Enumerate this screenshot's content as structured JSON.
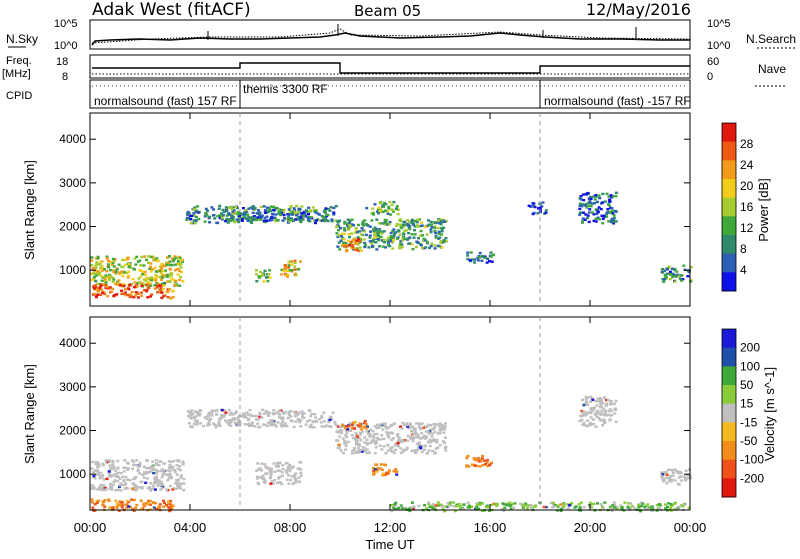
{
  "header": {
    "station": "Adak West (fitACF)",
    "beam": "Beam 05",
    "date": "12/May/2016"
  },
  "noise_panel": {
    "left_label": "N.Sky",
    "right_label": "N.Search",
    "left_ticks": [
      "10^5",
      "10^0"
    ],
    "right_ticks": [
      "10^5",
      "10^0"
    ]
  },
  "freq_panel": {
    "left_label": "Freq.",
    "left_unit": "[MHz]",
    "right_label": "Nave",
    "left_ticks": [
      "18",
      "8"
    ],
    "right_ticks": [
      "60",
      "0"
    ]
  },
  "cpid_panel": {
    "label": "CPID",
    "segments": [
      {
        "start_h": 0,
        "end_h": 6,
        "text": "normalsound (fast) 157 RF"
      },
      {
        "start_h": 6,
        "end_h": 18,
        "text": "themis 3300 RF"
      },
      {
        "start_h": 18,
        "end_h": 24,
        "text": "normalsound (fast) -157 RF"
      }
    ]
  },
  "x_axis": {
    "label": "Time UT",
    "ticks": [
      "00:00",
      "04:00",
      "08:00",
      "12:00",
      "16:00",
      "20:00",
      "00:00"
    ]
  },
  "colors": {
    "power": [
      "#1010e8",
      "#2e5fb8",
      "#2f8a6b",
      "#3fa83a",
      "#a6cc30",
      "#f3cd1c",
      "#f39a1a",
      "#ee5a14",
      "#e01810"
    ],
    "velocity_neg": [
      "#e01810",
      "#f0501a",
      "#f28c1a",
      "#f4b820"
    ],
    "velocity_ground": "#bfbfbf",
    "velocity_pos": [
      "#8acb3c",
      "#3fa83a",
      "#2f8a6b",
      "#1f4fa8",
      "#1a1ad8"
    ]
  },
  "chart_data": [
    {
      "type": "heatmap",
      "name": "power",
      "ylabel": "Slant Range [km]",
      "xlim": [
        0,
        24
      ],
      "ylim": [
        180,
        4600
      ],
      "yticks": [
        "1000",
        "2000",
        "3000",
        "4000"
      ],
      "colorbar": {
        "label": "Power [dB]",
        "range": [
          0,
          32
        ],
        "ticks": [
          "4",
          "8",
          "12",
          "16",
          "20",
          "24",
          "28"
        ]
      },
      "regions": [
        {
          "t0": 0.0,
          "t1": 3.7,
          "r0": 650,
          "r1": 1350,
          "level": 0.55
        },
        {
          "t0": 0.0,
          "t1": 2.8,
          "r0": 400,
          "r1": 700,
          "level": 0.9
        },
        {
          "t0": 2.6,
          "t1": 3.3,
          "r0": 380,
          "r1": 600,
          "level": 0.82
        },
        {
          "t0": 3.8,
          "t1": 9.8,
          "r0": 2100,
          "r1": 2500,
          "level": 0.3
        },
        {
          "t0": 5.5,
          "t1": 9.5,
          "r0": 2150,
          "r1": 2350,
          "level": 0.22
        },
        {
          "t0": 6.6,
          "t1": 7.2,
          "r0": 750,
          "r1": 1050,
          "level": 0.45
        },
        {
          "t0": 7.6,
          "t1": 8.4,
          "r0": 850,
          "r1": 1250,
          "level": 0.62
        },
        {
          "t0": 9.8,
          "t1": 14.2,
          "r0": 1500,
          "r1": 2200,
          "level": 0.35
        },
        {
          "t0": 10.0,
          "t1": 10.8,
          "r0": 1450,
          "r1": 1750,
          "level": 0.75
        },
        {
          "t0": 11.0,
          "t1": 12.3,
          "r0": 2300,
          "r1": 2600,
          "level": 0.35
        },
        {
          "t0": 15.0,
          "t1": 16.1,
          "r0": 1200,
          "r1": 1450,
          "level": 0.2
        },
        {
          "t0": 17.5,
          "t1": 18.2,
          "r0": 2300,
          "r1": 2600,
          "level": 0.12
        },
        {
          "t0": 19.5,
          "t1": 21.0,
          "r0": 2100,
          "r1": 2800,
          "level": 0.22
        },
        {
          "t0": 22.8,
          "t1": 24.0,
          "r0": 750,
          "r1": 1150,
          "level": 0.3
        }
      ]
    },
    {
      "type": "heatmap",
      "name": "velocity",
      "ylabel": "Slant Range [km]",
      "xlim": [
        0,
        24
      ],
      "ylim": [
        180,
        4600
      ],
      "yticks": [
        "1000",
        "2000",
        "3000",
        "4000"
      ],
      "colorbar": {
        "label": "Velocity [m s^-1]",
        "ticks": [
          "200",
          "100",
          "50",
          "15",
          "-15",
          "-50",
          "-100",
          "-200"
        ]
      },
      "regions": [
        {
          "t0": 0.0,
          "t1": 3.7,
          "r0": 650,
          "r1": 1350,
          "vel": 0
        },
        {
          "t0": 0.0,
          "t1": 3.3,
          "r0": 180,
          "r1": 450,
          "vel": -60
        },
        {
          "t0": 3.8,
          "t1": 9.8,
          "r0": 2100,
          "r1": 2500,
          "vel": 0
        },
        {
          "t0": 6.6,
          "t1": 8.4,
          "r0": 800,
          "r1": 1300,
          "vel": 0
        },
        {
          "t0": 9.8,
          "t1": 14.2,
          "r0": 1500,
          "r1": 2200,
          "vel": 0
        },
        {
          "t0": 10.0,
          "t1": 11.0,
          "r0": 2050,
          "r1": 2250,
          "vel": -60
        },
        {
          "t0": 11.2,
          "t1": 12.3,
          "r0": 1000,
          "r1": 1250,
          "vel": -60
        },
        {
          "t0": 15.0,
          "t1": 16.1,
          "r0": 1200,
          "r1": 1450,
          "vel": -60
        },
        {
          "t0": 19.5,
          "t1": 21.0,
          "r0": 2100,
          "r1": 2800,
          "vel": 0
        },
        {
          "t0": 22.8,
          "t1": 24.0,
          "r0": 750,
          "r1": 1150,
          "vel": 0
        },
        {
          "t0": 12.0,
          "t1": 24.0,
          "r0": 180,
          "r1": 380,
          "vel": 30
        }
      ]
    }
  ]
}
